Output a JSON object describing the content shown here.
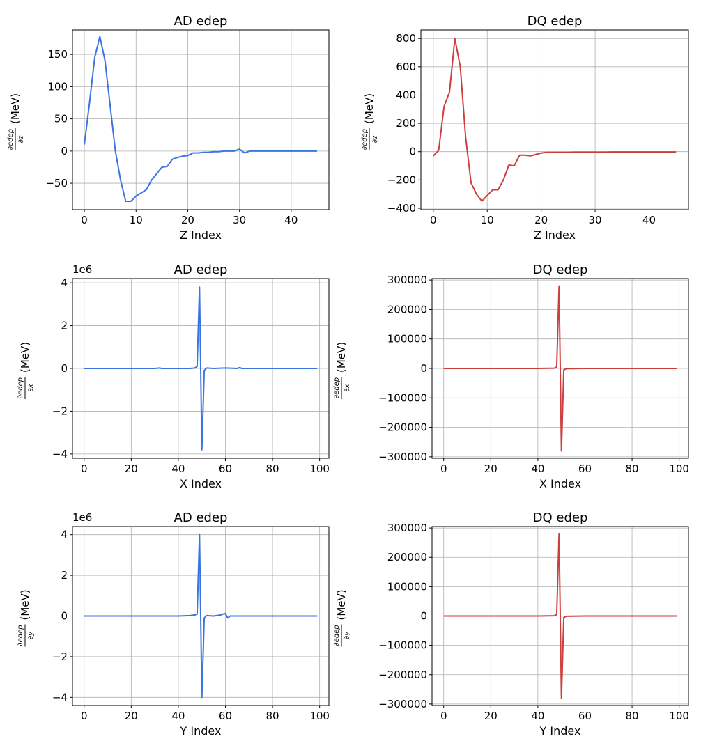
{
  "colors": {
    "ad": "#3a74e0",
    "dq": "#cd3f3f",
    "grid": "#b0b0b0",
    "axis": "#000000"
  },
  "chart_data": [
    {
      "id": "ad-z",
      "type": "line",
      "title": "AD edep",
      "xlabel": "Z Index",
      "ylabel_num": "∂edep",
      "ylabel_den": "∂z",
      "ylabel_unit": "(MeV)",
      "xlim": [
        -2.3,
        47.3
      ],
      "ylim": [
        -91,
        188
      ],
      "xticks": [
        0,
        10,
        20,
        30,
        40
      ],
      "yticks": [
        -50,
        0,
        50,
        100,
        150
      ],
      "ytick_labels": [
        "−50",
        "0",
        "50",
        "100",
        "150"
      ],
      "offset_text": "",
      "series": [
        {
          "name": "AD",
          "color": "ad",
          "x": [
            0,
            1,
            2,
            3,
            4,
            5,
            6,
            7,
            8,
            9,
            10,
            11,
            12,
            13,
            14,
            15,
            16,
            17,
            18,
            19,
            20,
            21,
            22,
            23,
            24,
            25,
            26,
            27,
            28,
            29,
            30,
            31,
            32,
            33,
            34,
            35,
            36,
            37,
            38,
            39,
            40,
            41,
            42,
            43,
            44,
            45
          ],
          "values": [
            10,
            75,
            145,
            178,
            140,
            70,
            0,
            -45,
            -78,
            -78,
            -70,
            -65,
            -60,
            -45,
            -35,
            -25,
            -24,
            -13,
            -10,
            -8,
            -7,
            -3,
            -3,
            -2,
            -2,
            -1,
            -1,
            0,
            0,
            0,
            3,
            -3,
            0,
            0,
            0,
            0,
            0,
            0,
            0,
            0,
            0,
            0,
            0,
            0,
            0,
            0
          ]
        }
      ]
    },
    {
      "id": "dq-z",
      "type": "line",
      "title": "DQ edep",
      "xlabel": "Z Index",
      "ylabel_num": "∂edep",
      "ylabel_den": "∂z",
      "ylabel_unit": "(MeV)",
      "xlim": [
        -2.3,
        47.3
      ],
      "ylim": [
        -410,
        860
      ],
      "xticks": [
        0,
        10,
        20,
        30,
        40
      ],
      "yticks": [
        -400,
        -200,
        0,
        200,
        400,
        600,
        800
      ],
      "ytick_labels": [
        "−400",
        "−200",
        "0",
        "200",
        "400",
        "600",
        "800"
      ],
      "offset_text": "",
      "series": [
        {
          "name": "DQ",
          "color": "dq",
          "x": [
            0,
            1,
            2,
            3,
            4,
            5,
            6,
            7,
            8,
            9,
            10,
            11,
            12,
            13,
            14,
            15,
            16,
            17,
            18,
            19,
            20,
            21,
            22,
            23,
            24,
            25,
            26,
            27,
            28,
            29,
            30,
            31,
            32,
            33,
            34,
            35,
            36,
            37,
            38,
            39,
            40,
            41,
            42,
            43,
            44,
            45
          ],
          "values": [
            -30,
            10,
            320,
            420,
            800,
            600,
            100,
            -220,
            -300,
            -350,
            -310,
            -270,
            -270,
            -200,
            -95,
            -100,
            -25,
            -25,
            -30,
            -20,
            -10,
            -5,
            -5,
            -5,
            -5,
            -5,
            -3,
            -3,
            -3,
            -3,
            -3,
            -3,
            -3,
            -2,
            -2,
            -2,
            -2,
            -2,
            -2,
            -2,
            -2,
            -2,
            -2,
            -2,
            -2,
            -2
          ]
        }
      ]
    },
    {
      "id": "ad-x",
      "type": "line",
      "title": "AD edep",
      "xlabel": "X Index",
      "ylabel_num": "∂edep",
      "ylabel_den": "∂x",
      "ylabel_unit": "(MeV)",
      "xlim": [
        -4.95,
        103.95
      ],
      "ylim": [
        -4.2,
        4.2
      ],
      "xticks": [
        0,
        20,
        40,
        60,
        80,
        100
      ],
      "yticks": [
        -4,
        -2,
        0,
        2,
        4
      ],
      "ytick_labels": [
        "−4",
        "−2",
        "0",
        "2",
        "4"
      ],
      "offset_text": "1e6",
      "series": [
        {
          "name": "AD",
          "color": "ad",
          "x": [
            0,
            10,
            20,
            30,
            32,
            33,
            40,
            45,
            47,
            48,
            49,
            50,
            51,
            52,
            55,
            60,
            65,
            66,
            67,
            70,
            80,
            90,
            99
          ],
          "values": [
            0,
            0,
            0,
            0,
            0.02,
            0,
            0,
            0,
            0.02,
            0.1,
            3.8,
            -3.8,
            -0.1,
            0.02,
            0,
            0.02,
            0,
            0.04,
            0,
            0,
            0,
            0,
            0
          ]
        }
      ]
    },
    {
      "id": "dq-x",
      "type": "line",
      "title": "DQ edep",
      "xlabel": "X Index",
      "ylabel_num": "∂edep",
      "ylabel_den": "∂x",
      "ylabel_unit": "(MeV)",
      "xlim": [
        -4.95,
        103.95
      ],
      "ylim": [
        -305000,
        305000
      ],
      "xticks": [
        0,
        20,
        40,
        60,
        80,
        100
      ],
      "yticks": [
        -300000,
        -200000,
        -100000,
        0,
        100000,
        200000,
        300000
      ],
      "ytick_labels": [
        "−300000",
        "−200000",
        "−100000",
        "0",
        "100000",
        "200000",
        "300000"
      ],
      "offset_text": "",
      "series": [
        {
          "name": "DQ",
          "color": "dq",
          "x": [
            0,
            10,
            20,
            30,
            40,
            47,
            48,
            49,
            50,
            51,
            52,
            60,
            70,
            80,
            90,
            99
          ],
          "values": [
            0,
            0,
            0,
            0,
            0,
            1000,
            5000,
            280000,
            -280000,
            -5000,
            -1000,
            0,
            0,
            0,
            0,
            0
          ]
        }
      ]
    },
    {
      "id": "ad-y",
      "type": "line",
      "title": "AD edep",
      "xlabel": "Y Index",
      "ylabel_num": "∂edep",
      "ylabel_den": "∂y",
      "ylabel_unit": "(MeV)",
      "xlim": [
        -4.95,
        103.95
      ],
      "ylim": [
        -4.4,
        4.4
      ],
      "xticks": [
        0,
        20,
        40,
        60,
        80,
        100
      ],
      "yticks": [
        -4,
        -2,
        0,
        2,
        4
      ],
      "ytick_labels": [
        "−4",
        "−2",
        "0",
        "2",
        "4"
      ],
      "offset_text": "1e6",
      "series": [
        {
          "name": "AD",
          "color": "ad",
          "x": [
            0,
            10,
            20,
            30,
            40,
            45,
            47,
            48,
            49,
            50,
            51,
            52,
            55,
            58,
            59,
            60,
            61,
            62,
            70,
            80,
            90,
            99
          ],
          "values": [
            0,
            0,
            0,
            0,
            0,
            0.02,
            0.05,
            0.1,
            4.0,
            -4.0,
            -0.1,
            0.02,
            0,
            0.05,
            0.1,
            0.12,
            -0.1,
            0,
            0,
            0,
            0,
            0
          ]
        }
      ]
    },
    {
      "id": "dq-y",
      "type": "line",
      "title": "DQ edep",
      "xlabel": "Y Index",
      "ylabel_num": "∂edep",
      "ylabel_den": "∂y",
      "ylabel_unit": "(MeV)",
      "xlim": [
        -4.95,
        103.95
      ],
      "ylim": [
        -305000,
        305000
      ],
      "xticks": [
        0,
        20,
        40,
        60,
        80,
        100
      ],
      "yticks": [
        -300000,
        -200000,
        -100000,
        0,
        100000,
        200000,
        300000
      ],
      "ytick_labels": [
        "−300000",
        "−200000",
        "−100000",
        "0",
        "100000",
        "200000",
        "300000"
      ],
      "offset_text": "",
      "series": [
        {
          "name": "DQ",
          "color": "dq",
          "x": [
            0,
            10,
            20,
            30,
            40,
            47,
            48,
            49,
            50,
            51,
            52,
            60,
            70,
            80,
            90,
            99
          ],
          "values": [
            0,
            0,
            0,
            0,
            0,
            1000,
            5000,
            280000,
            -280000,
            -5000,
            -1000,
            0,
            0,
            0,
            0,
            0
          ]
        }
      ]
    }
  ]
}
